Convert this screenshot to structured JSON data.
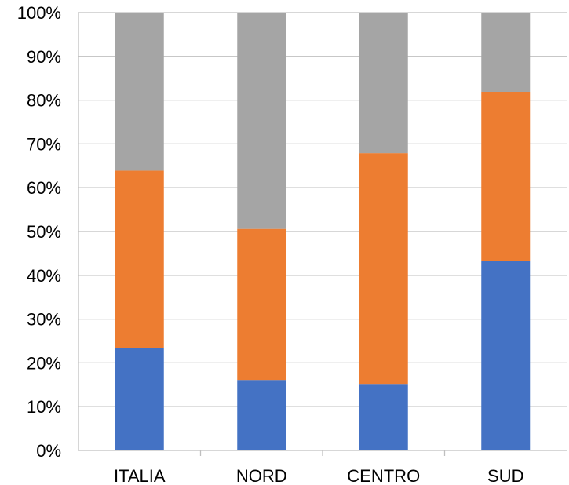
{
  "chart_data": {
    "type": "bar",
    "stacked": true,
    "percent_stacked": true,
    "categories": [
      "ITALIA",
      "NORD",
      "CENTRO",
      "SUD"
    ],
    "series": [
      {
        "values": [
          23.3,
          16.1,
          15.2,
          43.3
        ],
        "color": "#4472c4"
      },
      {
        "values": [
          40.6,
          34.5,
          52.7,
          38.6
        ],
        "color": "#ed7d31"
      },
      {
        "values": [
          36.1,
          49.4,
          32.1,
          18.1
        ],
        "color": "#a5a5a5"
      }
    ],
    "ylim": [
      0,
      100
    ],
    "yticks": [
      "0%",
      "10%",
      "20%",
      "30%",
      "40%",
      "50%",
      "60%",
      "70%",
      "80%",
      "90%",
      "100%"
    ],
    "grid": true,
    "legend": "none",
    "title": "",
    "xlabel": "",
    "ylabel": ""
  }
}
